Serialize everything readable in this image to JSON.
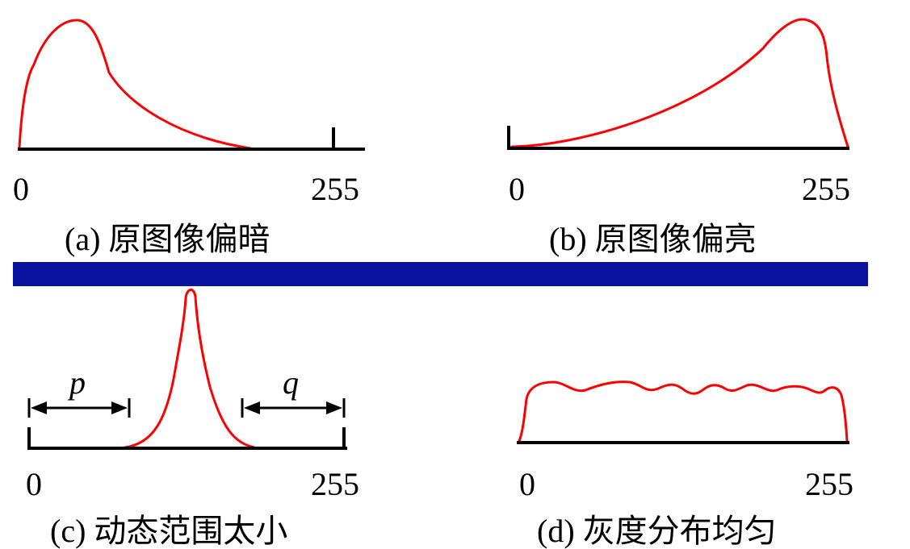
{
  "panels": [
    {
      "id": "a",
      "axis_start": "0",
      "axis_end": "255",
      "caption": "(a) 原图像偏暗"
    },
    {
      "id": "b",
      "axis_start": "0",
      "axis_end": "255",
      "caption": "(b) 原图像偏亮"
    },
    {
      "id": "c",
      "axis_start": "0",
      "axis_end": "255",
      "caption": "(c) 动态范围太小",
      "left_gap_label": "p",
      "right_gap_label": "q"
    },
    {
      "id": "d",
      "axis_start": "0",
      "axis_end": "255",
      "caption": "(d) 灰度分布均匀"
    }
  ],
  "colors": {
    "curve": "#ff0000",
    "axis": "#000000",
    "divider": "#0a14a0"
  }
}
